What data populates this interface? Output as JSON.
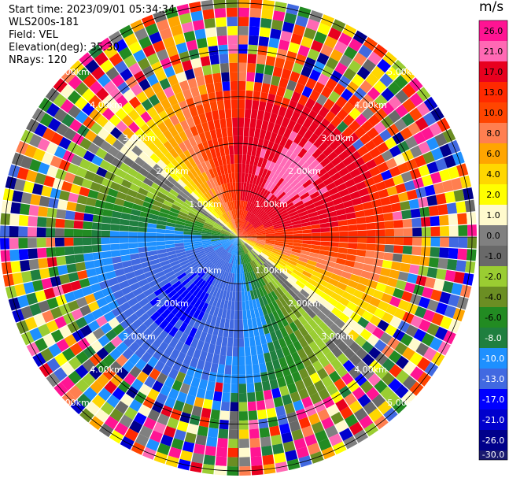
{
  "header": {
    "start_time": "Start time: 2023/09/01 05:34:34",
    "instrument": "WLS200s-181",
    "field": "Field: VEL",
    "elevation": "Elevation(deg): 35.30",
    "nrays": "NRays: 120"
  },
  "chart_data": {
    "type": "heatmap",
    "projection": "polar-ppi",
    "nrays": 120,
    "max_range_km": 5.1,
    "range_rings_km": [
      1.0,
      2.0,
      3.0,
      4.0,
      5.0
    ],
    "ring_labels": [
      "1.00km",
      "2.00km",
      "3.00km",
      "4.00km",
      "5.00km"
    ],
    "colorbar": {
      "unit": "m/s",
      "ticks": [
        "26.0",
        "21.0",
        "17.0",
        "13.0",
        "10.0",
        "8.0",
        "6.0",
        "4.0",
        "2.0",
        "1.0",
        "0.0",
        "-1.0",
        "-2.0",
        "-4.0",
        "-6.0",
        "-8.0",
        "-10.0",
        "-13.0",
        "-17.0",
        "-21.0",
        "-26.0",
        "-30.0"
      ],
      "colors": [
        "#ff1493",
        "#ff69b4",
        "#e8001f",
        "#ff2a00",
        "#ff4500",
        "#ff7f50",
        "#ffa500",
        "#ffd700",
        "#ffff00",
        "#fffacd",
        "#808080",
        "#696969",
        "#9acd32",
        "#6b8e23",
        "#228b22",
        "#1f7f3f",
        "#1e90ff",
        "#4169e1",
        "#0000ff",
        "#0000cd",
        "#00008b",
        "#191970"
      ]
    },
    "wind": {
      "toward_bearing_deg": 40,
      "speed_ms": 12
    },
    "grid": true
  }
}
